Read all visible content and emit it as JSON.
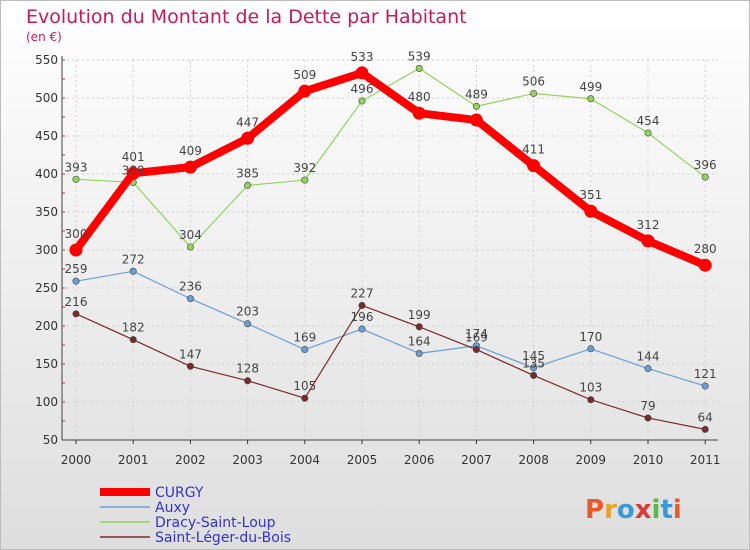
{
  "title": "Evolution du Montant de la Dette par Habitant",
  "subtitle": "(en €)",
  "logo": {
    "text": "Proxiti",
    "letters": [
      "P",
      "r",
      "o",
      "x",
      "i",
      "t",
      "i"
    ],
    "colors": [
      "#e85a2a",
      "#e8a22a",
      "#3a9ad9",
      "#d93a3a",
      "#5ab848",
      "#3a9ad9",
      "#e85a2a"
    ]
  },
  "colors": {
    "title": "#c8195c",
    "axis": "#333333",
    "grid": "#cfcfcf",
    "background_top": "#ffffff",
    "background_bottom": "#dedede"
  },
  "chart_data": {
    "type": "line",
    "x": [
      "2000",
      "2001",
      "2002",
      "2003",
      "2004",
      "2005",
      "2006",
      "2007",
      "2008",
      "2009",
      "2010",
      "2011"
    ],
    "yticks": [
      50,
      100,
      150,
      200,
      250,
      300,
      350,
      400,
      450,
      500,
      550
    ],
    "ylim": [
      50,
      550
    ],
    "grid": true,
    "legend_position": "bottom-left",
    "series": [
      {
        "name": "CURGY",
        "color": "#ff0000",
        "bold": true,
        "values": [
          300,
          401,
          409,
          447,
          509,
          533,
          480,
          471,
          411,
          351,
          312,
          280
        ],
        "labels": [
          "300",
          "401",
          "409",
          "447",
          "509",
          "533",
          "480",
          "",
          "411",
          "351",
          "312",
          "280"
        ]
      },
      {
        "name": "Auxy",
        "color": "#6a9fd4",
        "bold": false,
        "values": [
          259,
          272,
          236,
          203,
          169,
          196,
          164,
          174,
          145,
          170,
          144,
          121
        ],
        "labels": [
          "259",
          "272",
          "236",
          "203",
          "169",
          "196",
          "164",
          "174",
          "145",
          "170",
          "144",
          "121"
        ]
      },
      {
        "name": "Dracy-Saint-Loup",
        "color": "#92d35a",
        "bold": false,
        "values": [
          393,
          389,
          304,
          385,
          392,
          496,
          539,
          489,
          506,
          499,
          454,
          396
        ],
        "labels": [
          "393",
          "389",
          "304",
          "385",
          "392",
          "496",
          "539",
          "489",
          "506",
          "499",
          "454",
          "396"
        ]
      },
      {
        "name": "Saint-Léger-du-Bois",
        "color": "#7a2a2a",
        "bold": false,
        "values": [
          216,
          182,
          147,
          128,
          105,
          227,
          199,
          169,
          135,
          103,
          79,
          64
        ],
        "labels": [
          "216",
          "182",
          "147",
          "128",
          "105",
          "227",
          "199",
          "169",
          "135",
          "103",
          "79",
          "64"
        ]
      }
    ]
  }
}
